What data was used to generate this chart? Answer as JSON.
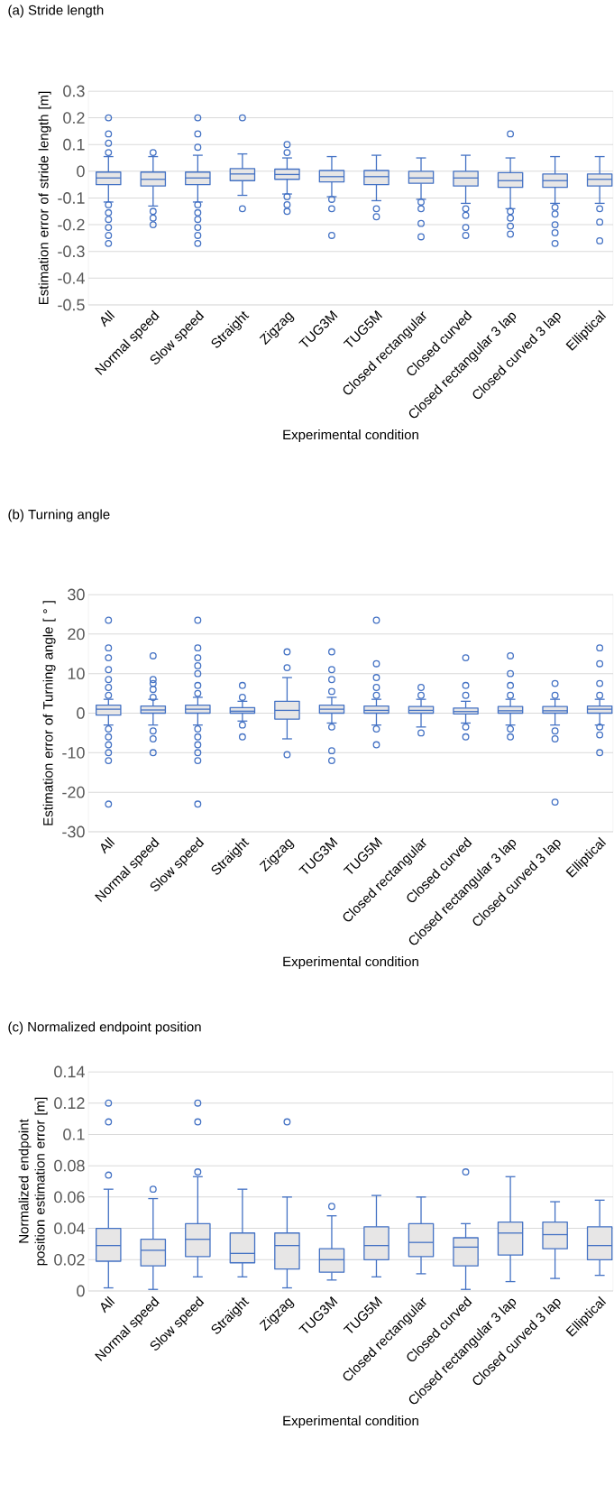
{
  "chart_data": [
    {
      "type": "box",
      "title": "(a) Stride length",
      "xlabel": "Experimental condition",
      "ylabel": "Estimation error of stride length [m]",
      "categories": [
        "All",
        "Normal speed",
        "Slow speed",
        "Straight",
        "Zigzag",
        "TUG3M",
        "TUG5M",
        "Closed rectangular",
        "Closed curved",
        "Closed rectangular 3 lap",
        "Closed curved 3 lap",
        "Elliptical"
      ],
      "ylim": [
        -0.5,
        0.3
      ],
      "yticks": [
        -0.5,
        -0.4,
        -0.3,
        -0.2,
        -0.1,
        0,
        0.1,
        0.2,
        0.3
      ],
      "grid": "y",
      "marker": "circle",
      "series": [
        {
          "color": "#4472c4",
          "boxes": [
            {
              "low": -0.115,
              "q1": -0.05,
              "median": -0.025,
              "q3": -0.003,
              "high": 0.055,
              "outliers": [
                0.2,
                0.14,
                0.105,
                0.07,
                -0.125,
                -0.155,
                -0.18,
                -0.21,
                -0.24,
                -0.27
              ]
            },
            {
              "low": -0.13,
              "q1": -0.055,
              "median": -0.03,
              "q3": -0.003,
              "high": 0.055,
              "outliers": [
                0.07,
                -0.15,
                -0.175,
                -0.2
              ]
            },
            {
              "low": -0.115,
              "q1": -0.05,
              "median": -0.025,
              "q3": -0.003,
              "high": 0.06,
              "outliers": [
                0.2,
                0.14,
                0.09,
                -0.125,
                -0.155,
                -0.18,
                -0.21,
                -0.24,
                -0.27
              ]
            },
            {
              "low": -0.09,
              "q1": -0.035,
              "median": -0.01,
              "q3": 0.01,
              "high": 0.065,
              "outliers": [
                0.2,
                -0.14
              ]
            },
            {
              "low": -0.085,
              "q1": -0.03,
              "median": -0.012,
              "q3": 0.008,
              "high": 0.05,
              "outliers": [
                0.1,
                0.07,
                -0.095,
                -0.125,
                -0.15
              ]
            },
            {
              "low": -0.095,
              "q1": -0.04,
              "median": -0.02,
              "q3": 0.003,
              "high": 0.055,
              "outliers": [
                -0.105,
                -0.14,
                -0.24
              ]
            },
            {
              "low": -0.11,
              "q1": -0.05,
              "median": -0.02,
              "q3": 0.003,
              "high": 0.06,
              "outliers": [
                -0.14,
                -0.17
              ]
            },
            {
              "low": -0.105,
              "q1": -0.045,
              "median": -0.025,
              "q3": 0,
              "high": 0.05,
              "outliers": [
                -0.115,
                -0.14,
                -0.195,
                -0.245
              ]
            },
            {
              "low": -0.12,
              "q1": -0.055,
              "median": -0.025,
              "q3": 0,
              "high": 0.06,
              "outliers": [
                -0.14,
                -0.165,
                -0.21,
                -0.24
              ]
            },
            {
              "low": -0.14,
              "q1": -0.06,
              "median": -0.035,
              "q3": -0.005,
              "high": 0.05,
              "outliers": [
                0.14,
                -0.15,
                -0.175,
                -0.205,
                -0.235
              ]
            },
            {
              "low": -0.12,
              "q1": -0.06,
              "median": -0.035,
              "q3": -0.01,
              "high": 0.055,
              "outliers": [
                -0.135,
                -0.16,
                -0.2,
                -0.23,
                -0.27
              ]
            },
            {
              "low": -0.12,
              "q1": -0.055,
              "median": -0.03,
              "q3": -0.01,
              "high": 0.055,
              "outliers": [
                -0.14,
                -0.19,
                -0.26
              ]
            }
          ]
        }
      ]
    },
    {
      "type": "box",
      "title": "(b) Turning angle",
      "xlabel": "Experimental condition",
      "ylabel": "Estimation error of Turning angle [ ° ]",
      "categories": [
        "All",
        "Normal speed",
        "Slow speed",
        "Straight",
        "Zigzag",
        "TUG3M",
        "TUG5M",
        "Closed rectangular",
        "Closed curved",
        "Closed rectangular 3 lap",
        "Closed curved 3 lap",
        "Elliptical"
      ],
      "ylim": [
        -30,
        30
      ],
      "yticks": [
        -30,
        -20,
        -10,
        0,
        10,
        20,
        30
      ],
      "grid": "y",
      "marker": "circle",
      "series": [
        {
          "color": "#4472c4",
          "boxes": [
            {
              "low": -3,
              "q1": -0.5,
              "median": 1,
              "q3": 2,
              "high": 3.5,
              "outliers": [
                23.5,
                16.5,
                14,
                11,
                8.5,
                6.5,
                4.5,
                -4,
                -6,
                -8,
                -10,
                -12,
                -23
              ]
            },
            {
              "low": -3,
              "q1": 0,
              "median": 0.8,
              "q3": 1.8,
              "high": 3.5,
              "outliers": [
                14.5,
                8.5,
                7.5,
                6,
                4,
                -4.5,
                -6.5,
                -10
              ]
            },
            {
              "low": -3,
              "q1": 0,
              "median": 1,
              "q3": 2,
              "high": 4,
              "outliers": [
                23.5,
                16.5,
                14,
                12,
                10,
                7,
                5,
                -4,
                -6,
                -8,
                -10,
                -12,
                -23
              ]
            },
            {
              "low": -2,
              "q1": 0,
              "median": 0.5,
              "q3": 1.4,
              "high": 3,
              "outliers": [
                7,
                4,
                -3,
                -6
              ]
            },
            {
              "low": -6.5,
              "q1": -1.5,
              "median": 0.7,
              "q3": 3,
              "high": 9,
              "outliers": [
                15.5,
                11.5,
                -10.5
              ]
            },
            {
              "low": -2.5,
              "q1": 0,
              "median": 1,
              "q3": 2,
              "high": 4,
              "outliers": [
                15.5,
                11,
                8.5,
                5.5,
                -3.5,
                -9.5,
                -12
              ]
            },
            {
              "low": -3,
              "q1": 0,
              "median": 0.7,
              "q3": 1.8,
              "high": 3.5,
              "outliers": [
                23.5,
                12.5,
                9,
                6.5,
                4.5,
                -4,
                -8
              ]
            },
            {
              "low": -3.5,
              "q1": 0,
              "median": 0.7,
              "q3": 1.7,
              "high": 3.5,
              "outliers": [
                6.5,
                4.5,
                -5
              ]
            },
            {
              "low": -2.5,
              "q1": -0.2,
              "median": 0.4,
              "q3": 1.3,
              "high": 3,
              "outliers": [
                14,
                7,
                4.5,
                -3.5,
                -6
              ]
            },
            {
              "low": -3,
              "q1": 0,
              "median": 0.6,
              "q3": 1.7,
              "high": 3.5,
              "outliers": [
                14.5,
                10,
                7,
                4.5,
                -4,
                -6
              ]
            },
            {
              "low": -3,
              "q1": 0,
              "median": 0.6,
              "q3": 1.7,
              "high": 3.5,
              "outliers": [
                7.5,
                4.5,
                -4.5,
                -6.5,
                -22.5
              ]
            },
            {
              "low": -3,
              "q1": 0,
              "median": 1,
              "q3": 1.8,
              "high": 3.5,
              "outliers": [
                16.5,
                12.5,
                7.5,
                4.5,
                -3.5,
                -5.5,
                -10
              ]
            }
          ]
        }
      ]
    },
    {
      "type": "box",
      "title": "(c) Normalized endpoint position",
      "xlabel": "Experimental condition",
      "ylabel": "Normalized endpoint position estimation error [m]",
      "categories": [
        "All",
        "Normal speed",
        "Slow speed",
        "Straight",
        "Zigzag",
        "TUG3M",
        "TUG5M",
        "Closed rectangular",
        "Closed curved",
        "Closed rectangular 3 lap",
        "Closed curved 3 lap",
        "Elliptical"
      ],
      "ylim": [
        0,
        0.14
      ],
      "yticks": [
        0,
        0.02,
        0.04,
        0.06,
        0.08,
        0.1,
        0.12,
        0.14
      ],
      "grid": "y",
      "marker": "circle",
      "series": [
        {
          "color": "#4472c4",
          "boxes": [
            {
              "low": 0.002,
              "q1": 0.019,
              "median": 0.029,
              "q3": 0.04,
              "high": 0.065,
              "outliers": [
                0.12,
                0.108,
                0.074
              ]
            },
            {
              "low": 0.001,
              "q1": 0.016,
              "median": 0.026,
              "q3": 0.033,
              "high": 0.059,
              "outliers": [
                0.065
              ]
            },
            {
              "low": 0.009,
              "q1": 0.022,
              "median": 0.033,
              "q3": 0.043,
              "high": 0.073,
              "outliers": [
                0.12,
                0.108,
                0.076
              ]
            },
            {
              "low": 0.009,
              "q1": 0.018,
              "median": 0.024,
              "q3": 0.037,
              "high": 0.065
            },
            {
              "low": 0.002,
              "q1": 0.014,
              "median": 0.029,
              "q3": 0.037,
              "high": 0.06,
              "outliers": [
                0.108
              ]
            },
            {
              "low": 0.007,
              "q1": 0.012,
              "median": 0.02,
              "q3": 0.027,
              "high": 0.048,
              "outliers": [
                0.054
              ]
            },
            {
              "low": 0.009,
              "q1": 0.02,
              "median": 0.029,
              "q3": 0.041,
              "high": 0.061
            },
            {
              "low": 0.011,
              "q1": 0.022,
              "median": 0.031,
              "q3": 0.043,
              "high": 0.06
            },
            {
              "low": 0.001,
              "q1": 0.016,
              "median": 0.028,
              "q3": 0.034,
              "high": 0.043,
              "outliers": [
                0.076
              ]
            },
            {
              "low": 0.006,
              "q1": 0.023,
              "median": 0.037,
              "q3": 0.044,
              "high": 0.073
            },
            {
              "low": 0.008,
              "q1": 0.027,
              "median": 0.036,
              "q3": 0.044,
              "high": 0.057
            },
            {
              "low": 0.01,
              "q1": 0.02,
              "median": 0.029,
              "q3": 0.041,
              "high": 0.058
            }
          ]
        }
      ]
    }
  ]
}
